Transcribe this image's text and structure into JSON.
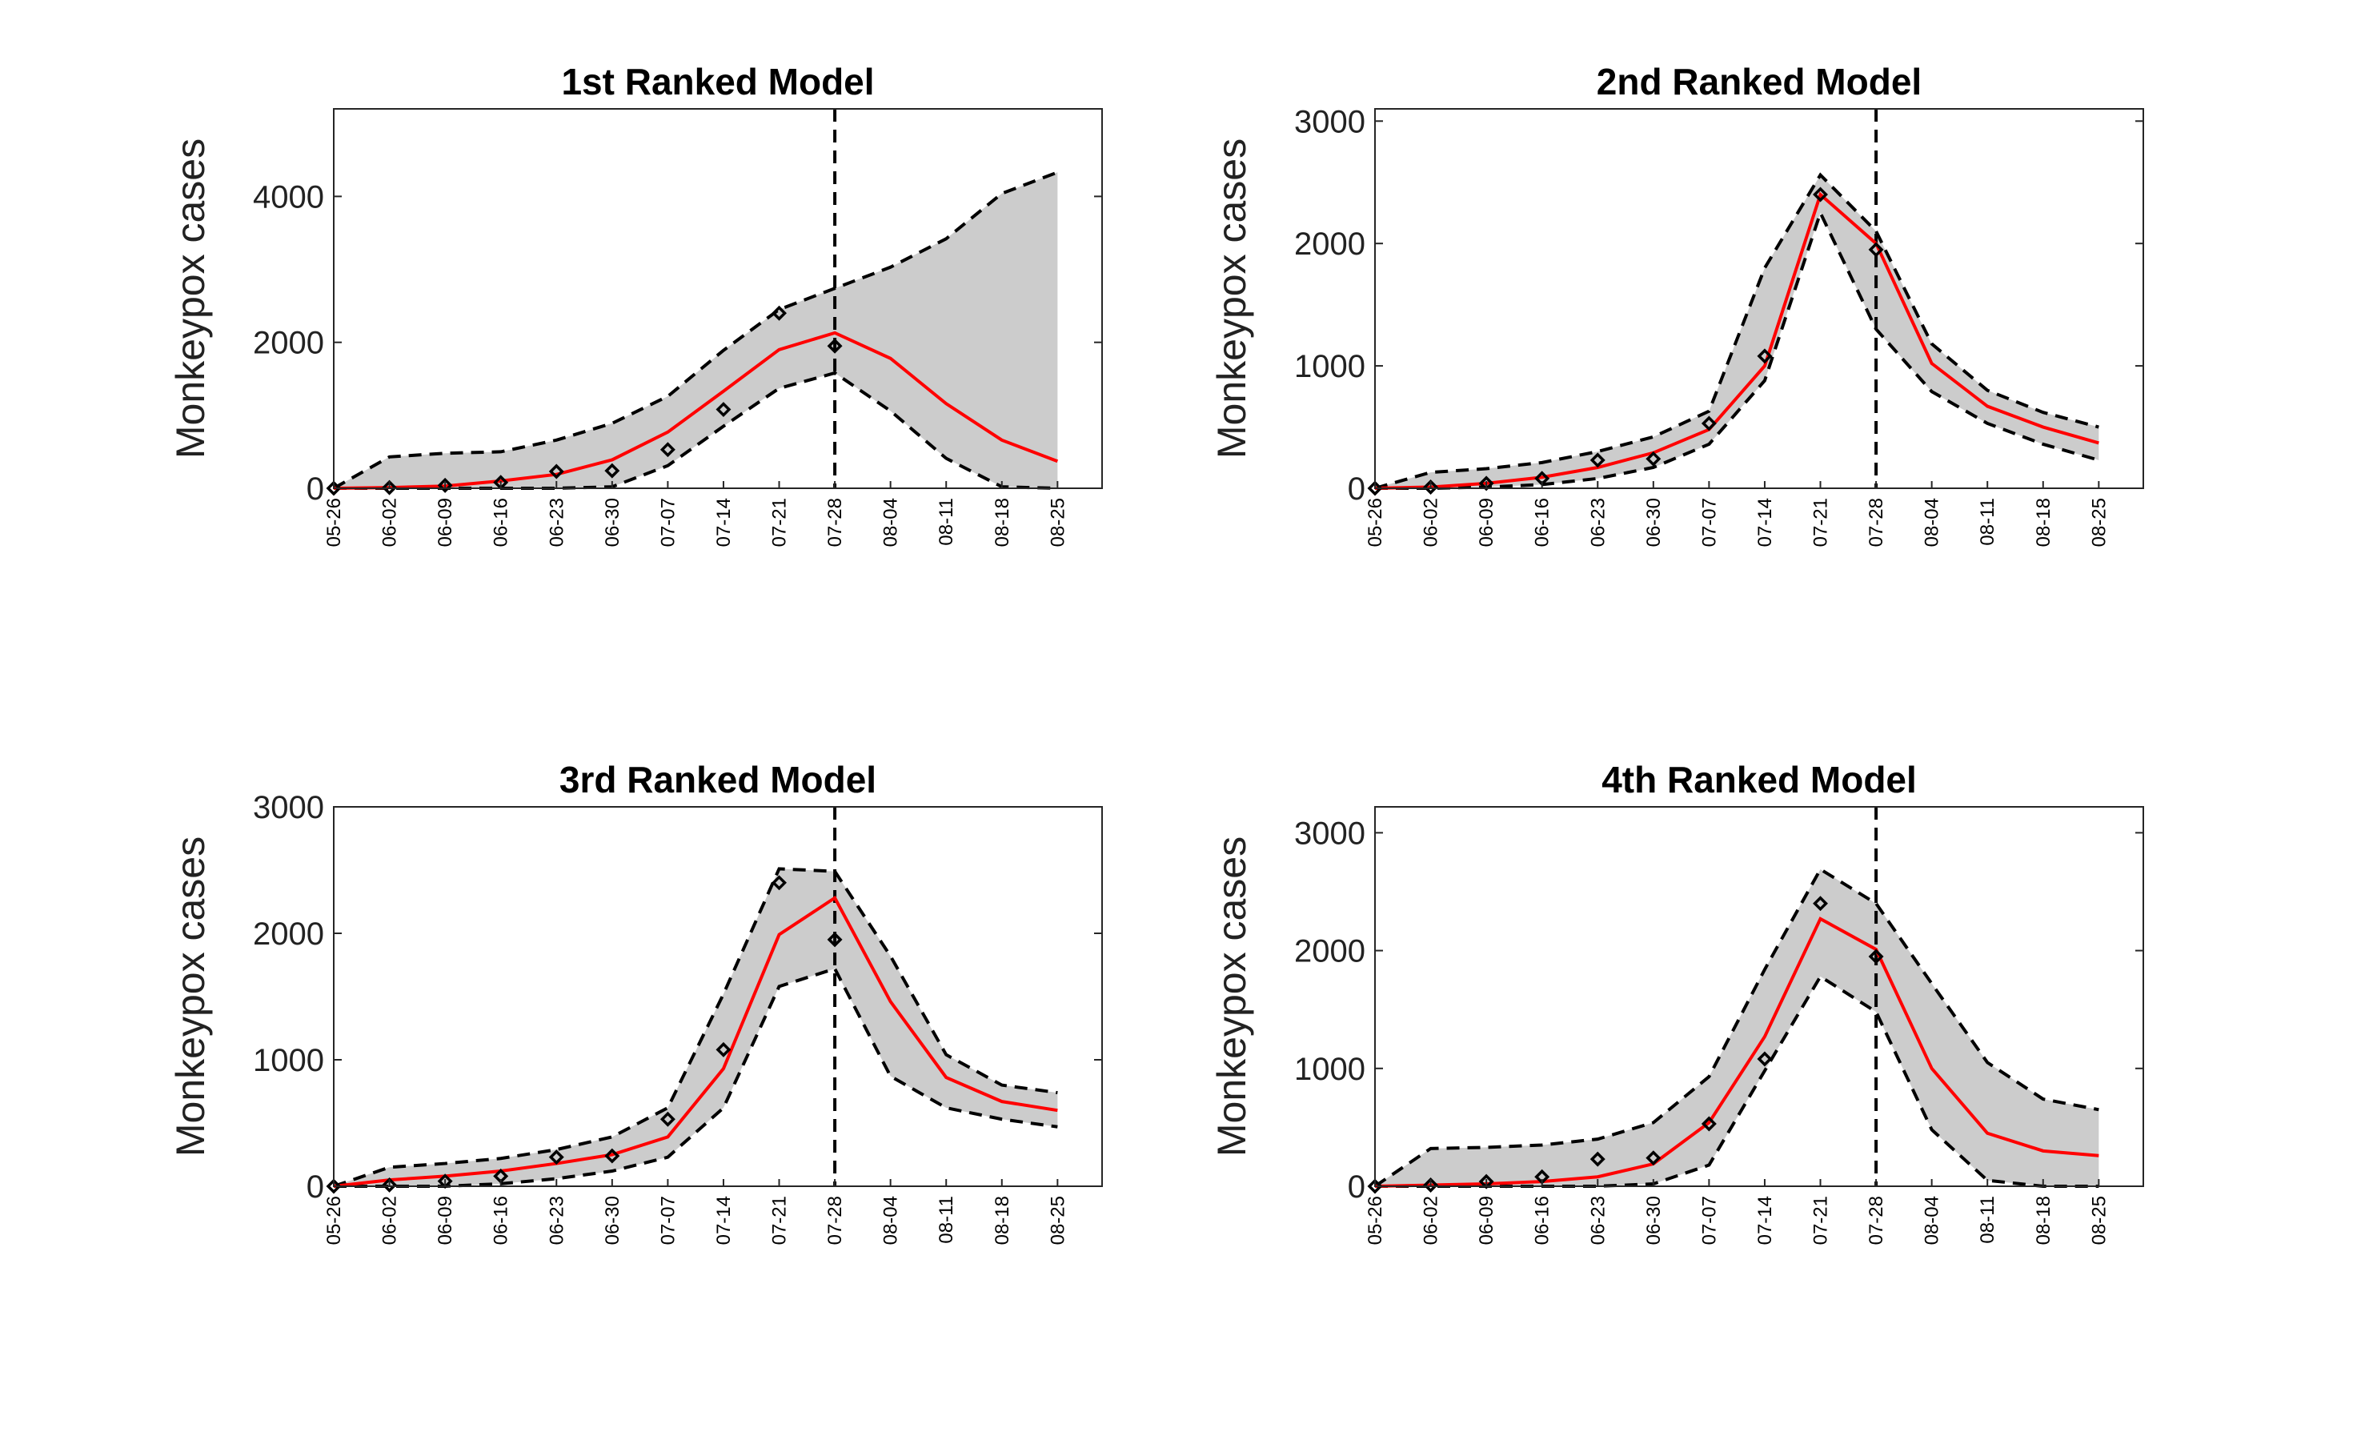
{
  "chart_data": [
    {
      "type": "line",
      "title": "1st Ranked Model",
      "y_label": "Monkeypox cases",
      "categories": [
        "05-26",
        "06-02",
        "06-09",
        "06-16",
        "06-23",
        "06-30",
        "07-07",
        "07-14",
        "07-21",
        "07-28",
        "08-04",
        "08-11",
        "08-18",
        "08-25"
      ],
      "vline": "07-28",
      "band_color": "#cccccc",
      "ylim": [
        0,
        5200
      ],
      "yticks": [
        0,
        2000,
        4000
      ],
      "series": [
        {
          "type": "band_lower",
          "color": "#000000",
          "linestyle": "dashed",
          "values": [
            0,
            0,
            0,
            0,
            0,
            20,
            310,
            850,
            1370,
            1580,
            1060,
            410,
            20,
            0
          ]
        },
        {
          "type": "band_upper",
          "color": "#000000",
          "linestyle": "dashed",
          "values": [
            0,
            430,
            480,
            500,
            660,
            890,
            1260,
            1890,
            2450,
            2740,
            3030,
            3420,
            4040,
            4330
          ]
        },
        {
          "type": "line",
          "color": "#ff0000",
          "values": [
            0,
            10,
            30,
            100,
            190,
            390,
            770,
            1330,
            1900,
            2130,
            1780,
            1160,
            660,
            370
          ]
        },
        {
          "type": "scatter",
          "color": "#000000",
          "values": [
            0,
            10,
            40,
            80,
            230,
            240,
            530,
            1080,
            2400,
            1950,
            null,
            null,
            null,
            null
          ]
        }
      ]
    },
    {
      "type": "line",
      "title": "2nd Ranked Model",
      "y_label": "Monkeypox cases",
      "categories": [
        "05-26",
        "06-02",
        "06-09",
        "06-16",
        "06-23",
        "06-30",
        "07-07",
        "07-14",
        "07-21",
        "07-28",
        "08-04",
        "08-11",
        "08-18",
        "08-25"
      ],
      "vline": "07-28",
      "band_color": "#cccccc",
      "ylim": [
        0,
        3100
      ],
      "yticks": [
        0,
        1000,
        2000,
        3000
      ],
      "series": [
        {
          "type": "band_lower",
          "color": "#000000",
          "linestyle": "dashed",
          "values": [
            0,
            0,
            10,
            30,
            80,
            170,
            360,
            880,
            2250,
            1300,
            790,
            530,
            360,
            230
          ]
        },
        {
          "type": "band_upper",
          "color": "#000000",
          "linestyle": "dashed",
          "values": [
            0,
            130,
            160,
            210,
            300,
            420,
            630,
            1800,
            2560,
            2100,
            1180,
            800,
            620,
            500
          ]
        },
        {
          "type": "line",
          "color": "#ff0000",
          "values": [
            0,
            10,
            40,
            90,
            170,
            290,
            480,
            1000,
            2400,
            2000,
            1020,
            670,
            500,
            370
          ]
        },
        {
          "type": "scatter",
          "color": "#000000",
          "values": [
            0,
            10,
            40,
            80,
            230,
            240,
            530,
            1080,
            2400,
            1950,
            null,
            null,
            null,
            null
          ]
        }
      ]
    },
    {
      "type": "line",
      "title": "3rd Ranked Model",
      "y_label": "Monkeypox cases",
      "categories": [
        "05-26",
        "06-02",
        "06-09",
        "06-16",
        "06-23",
        "06-30",
        "07-07",
        "07-14",
        "07-21",
        "07-28",
        "08-04",
        "08-11",
        "08-18",
        "08-25"
      ],
      "vline": "07-28",
      "band_color": "#cccccc",
      "ylim": [
        0,
        3000
      ],
      "yticks": [
        0,
        1000,
        2000,
        3000
      ],
      "series": [
        {
          "type": "band_lower",
          "color": "#000000",
          "linestyle": "dashed",
          "values": [
            0,
            0,
            0,
            20,
            60,
            120,
            230,
            620,
            1580,
            1720,
            870,
            620,
            530,
            470
          ]
        },
        {
          "type": "band_upper",
          "color": "#000000",
          "linestyle": "dashed",
          "values": [
            0,
            150,
            180,
            220,
            290,
            390,
            620,
            1520,
            2510,
            2490,
            1820,
            1040,
            800,
            740
          ]
        },
        {
          "type": "line",
          "color": "#ff0000",
          "values": [
            0,
            50,
            80,
            120,
            180,
            250,
            390,
            930,
            1990,
            2280,
            1460,
            860,
            670,
            600
          ]
        },
        {
          "type": "scatter",
          "color": "#000000",
          "values": [
            0,
            10,
            40,
            80,
            230,
            240,
            530,
            1080,
            2400,
            1950,
            null,
            null,
            null,
            null
          ]
        }
      ]
    },
    {
      "type": "line",
      "title": "4th Ranked Model",
      "y_label": "Monkeypox cases",
      "categories": [
        "05-26",
        "06-02",
        "06-09",
        "06-16",
        "06-23",
        "06-30",
        "07-07",
        "07-14",
        "07-21",
        "07-28",
        "08-04",
        "08-11",
        "08-18",
        "08-25"
      ],
      "vline": "07-28",
      "band_color": "#cccccc",
      "ylim": [
        0,
        3220
      ],
      "yticks": [
        0,
        1000,
        2000,
        3000
      ],
      "series": [
        {
          "type": "band_lower",
          "color": "#000000",
          "linestyle": "dashed",
          "values": [
            0,
            0,
            0,
            0,
            0,
            20,
            180,
            980,
            1780,
            1480,
            480,
            50,
            0,
            0
          ]
        },
        {
          "type": "band_upper",
          "color": "#000000",
          "linestyle": "dashed",
          "values": [
            0,
            320,
            330,
            350,
            400,
            540,
            930,
            1840,
            2690,
            2400,
            1720,
            1050,
            740,
            650
          ]
        },
        {
          "type": "line",
          "color": "#ff0000",
          "values": [
            0,
            10,
            20,
            40,
            80,
            190,
            540,
            1270,
            2270,
            2010,
            1000,
            450,
            300,
            260
          ]
        },
        {
          "type": "scatter",
          "color": "#000000",
          "values": [
            0,
            10,
            40,
            80,
            230,
            240,
            530,
            1080,
            2400,
            1950,
            null,
            null,
            null,
            null
          ]
        }
      ]
    }
  ]
}
